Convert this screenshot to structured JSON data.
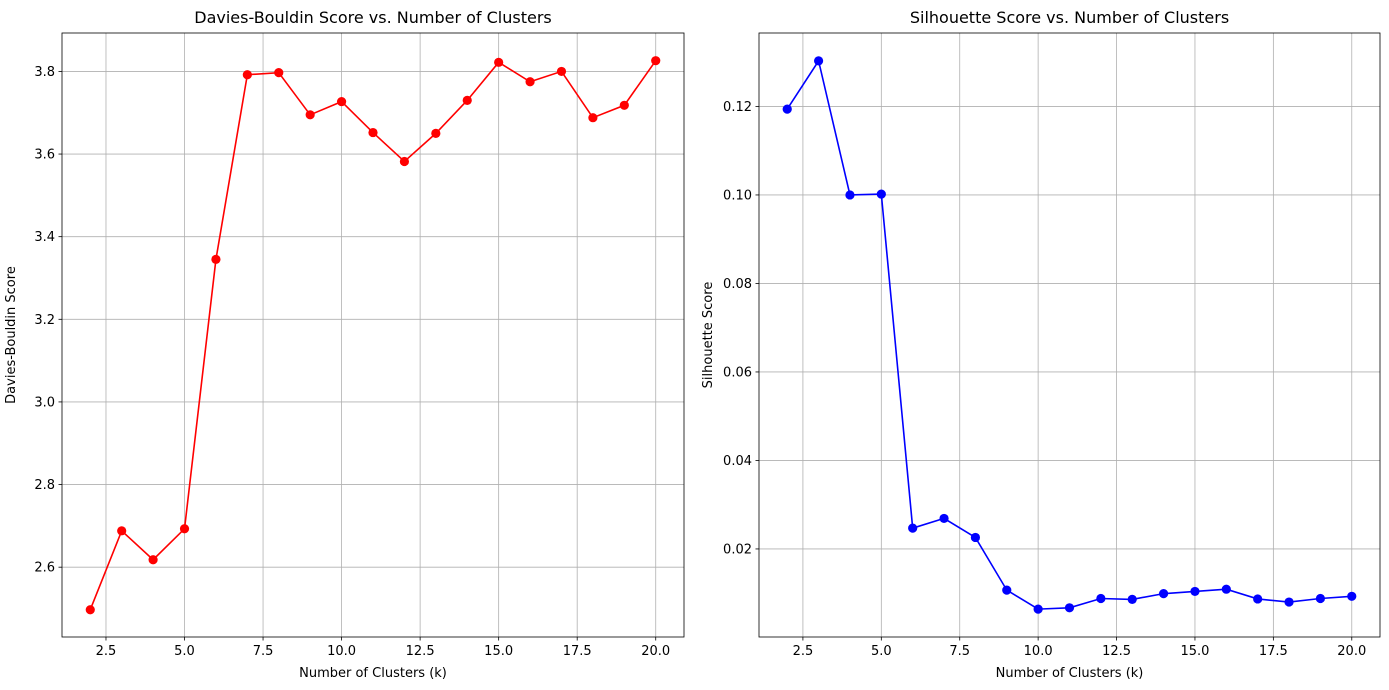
{
  "chart_data": [
    {
      "type": "line",
      "title": "Davies-Bouldin Score vs. Number of Clusters",
      "xlabel": "Number of Clusters (k)",
      "ylabel": "Davies-Bouldin Score",
      "xlim": [
        1.1,
        20.9
      ],
      "ylim": [
        2.431,
        3.893
      ],
      "xticks": [
        2.5,
        5.0,
        7.5,
        10.0,
        12.5,
        15.0,
        17.5,
        20.0
      ],
      "xtick_labels": [
        "2.5",
        "5.0",
        "7.5",
        "10.0",
        "12.5",
        "15.0",
        "17.5",
        "20.0"
      ],
      "yticks": [
        2.6,
        2.8,
        3.0,
        3.2,
        3.4,
        3.6,
        3.8
      ],
      "ytick_labels": [
        "2.6",
        "2.8",
        "3.0",
        "3.2",
        "3.4",
        "3.6",
        "3.8"
      ],
      "grid": true,
      "color": "#ff0000",
      "marker": "circle",
      "x": [
        2,
        3,
        4,
        5,
        6,
        7,
        8,
        9,
        10,
        11,
        12,
        13,
        14,
        15,
        16,
        17,
        18,
        19,
        20
      ],
      "y": [
        2.497,
        2.688,
        2.618,
        2.693,
        3.345,
        3.792,
        3.797,
        3.695,
        3.727,
        3.652,
        3.582,
        3.65,
        3.73,
        3.822,
        3.775,
        3.8,
        3.688,
        3.718,
        3.826
      ]
    },
    {
      "type": "line",
      "title": "Silhouette Score vs. Number of Clusters",
      "xlabel": "Number of Clusters (k)",
      "ylabel": "Silhouette Score",
      "xlim": [
        1.1,
        20.9
      ],
      "ylim": [
        0.0001,
        0.1366
      ],
      "xticks": [
        2.5,
        5.0,
        7.5,
        10.0,
        12.5,
        15.0,
        17.5,
        20.0
      ],
      "xtick_labels": [
        "2.5",
        "5.0",
        "7.5",
        "10.0",
        "12.5",
        "15.0",
        "17.5",
        "20.0"
      ],
      "yticks": [
        0.02,
        0.04,
        0.06,
        0.08,
        0.1,
        0.12
      ],
      "ytick_labels": [
        "0.02",
        "0.04",
        "0.06",
        "0.08",
        "0.10",
        "0.12"
      ],
      "grid": true,
      "color": "#0000ff",
      "marker": "circle",
      "x": [
        2,
        3,
        4,
        5,
        6,
        7,
        8,
        9,
        10,
        11,
        12,
        13,
        14,
        15,
        16,
        17,
        18,
        19,
        20
      ],
      "y": [
        0.1194,
        0.1303,
        0.1,
        0.1002,
        0.0247,
        0.0269,
        0.0226,
        0.0107,
        0.0064,
        0.0067,
        0.0088,
        0.0086,
        0.0099,
        0.0104,
        0.0109,
        0.0087,
        0.008,
        0.0088,
        0.0093
      ]
    }
  ]
}
